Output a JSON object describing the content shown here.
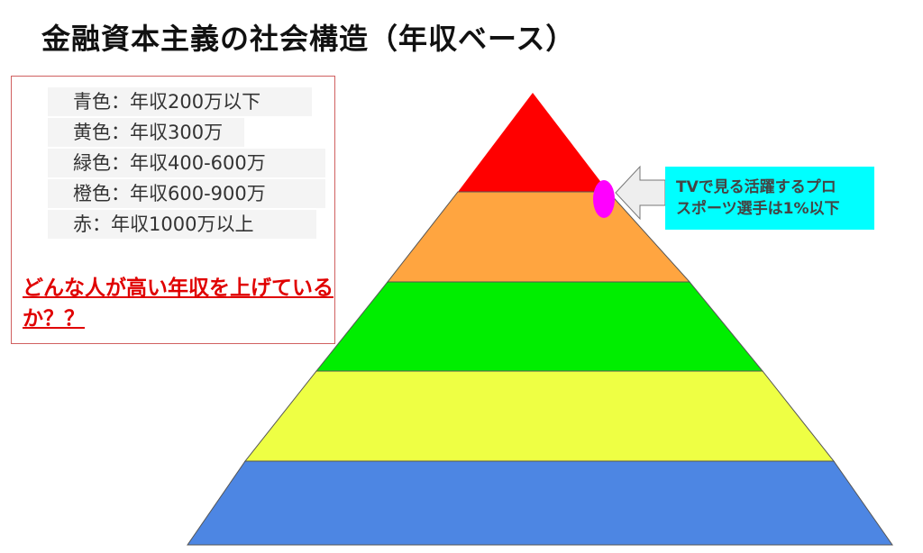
{
  "title": "金融資本主義の社会構造（年収ベース）",
  "legend": [
    {
      "label": "青色：年収200万以下"
    },
    {
      "label": "黄色：年収300万"
    },
    {
      "label": "緑色：年収400-600万"
    },
    {
      "label": "橙色：年収600-900万"
    },
    {
      "label": "赤：年収1000万以上"
    }
  ],
  "question": "どんな人が高い年収を上げているか？？",
  "callout": {
    "line1": "TVで見る活躍するプロ",
    "line2": "スポーツ選手は1%以下"
  },
  "colors": {
    "red": "#ff0000",
    "orange": "#ffa540",
    "green": "#00ee00",
    "yellow": "#eeff44",
    "blue": "#4d86e3",
    "marker": "#ff00ff",
    "callout": "#00ffff"
  }
}
